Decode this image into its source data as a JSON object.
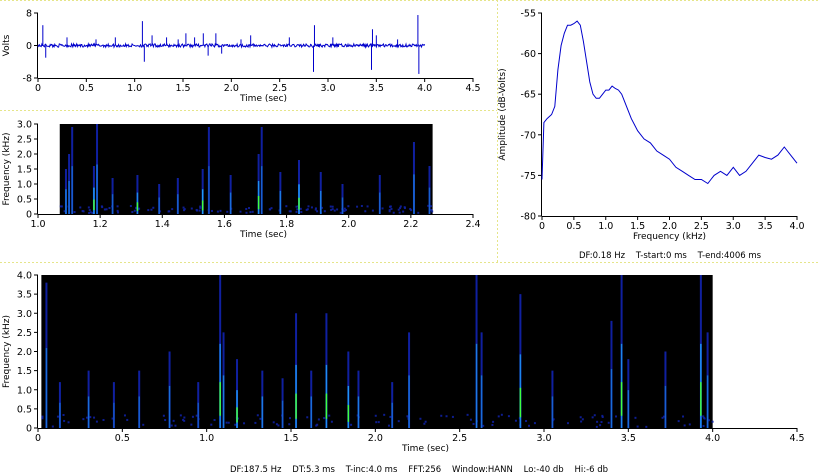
{
  "colors": {
    "background": "#ffffff",
    "panel_border": "#e5e58a",
    "trace": "#0000cc",
    "spectrogram_bg": "#000000",
    "spectrogram_low": "#1020a0",
    "spectrogram_mid": "#20a0ff",
    "spectrogram_high": "#40ff40"
  },
  "chart_data": [
    {
      "id": "waveform",
      "type": "line",
      "title": "",
      "xlabel": "Time (sec)",
      "ylabel": "Volts",
      "xlim": [
        0,
        4.5
      ],
      "ylim": [
        -8,
        8
      ],
      "xticks": [
        "0",
        "0.5",
        "1.0",
        "1.5",
        "2.0",
        "2.5",
        "3.0",
        "3.5",
        "4.0",
        "4.5"
      ],
      "yticks": [
        "8",
        "0",
        "-8"
      ],
      "x_end": 4.0,
      "baseline": 0,
      "noise_amplitude": 0.4,
      "spikes": [
        {
          "t": 0.05,
          "v": 5.0
        },
        {
          "t": 0.08,
          "v": -3.0
        },
        {
          "t": 0.3,
          "v": 2.0
        },
        {
          "t": 0.6,
          "v": 1.5
        },
        {
          "t": 0.8,
          "v": 2.0
        },
        {
          "t": 1.08,
          "v": 6.0
        },
        {
          "t": 1.1,
          "v": -4.0
        },
        {
          "t": 1.18,
          "v": 2.5
        },
        {
          "t": 1.33,
          "v": 2.0
        },
        {
          "t": 1.45,
          "v": 1.5
        },
        {
          "t": 1.53,
          "v": 3.0
        },
        {
          "t": 1.62,
          "v": 2.0
        },
        {
          "t": 1.71,
          "v": 3.0
        },
        {
          "t": 1.76,
          "v": -2.5
        },
        {
          "t": 1.84,
          "v": 3.0
        },
        {
          "t": 1.9,
          "v": -2.0
        },
        {
          "t": 2.1,
          "v": 1.5
        },
        {
          "t": 2.2,
          "v": 2.5
        },
        {
          "t": 2.6,
          "v": 2.0
        },
        {
          "t": 2.85,
          "v": -6.5
        },
        {
          "t": 2.86,
          "v": 5.0
        },
        {
          "t": 3.05,
          "v": 2.0
        },
        {
          "t": 3.45,
          "v": -6.0
        },
        {
          "t": 3.46,
          "v": 4.0
        },
        {
          "t": 3.5,
          "v": 2.5
        },
        {
          "t": 3.72,
          "v": 1.5
        },
        {
          "t": 3.93,
          "v": 7.5
        },
        {
          "t": 3.94,
          "v": -7.0
        }
      ]
    },
    {
      "id": "spectrogram_zoom",
      "type": "heatmap",
      "title": "",
      "xlabel": "Time (sec)",
      "ylabel": "Frequency (kHz)",
      "xlim": [
        1.0,
        2.4
      ],
      "ylim": [
        0,
        3.0
      ],
      "data_x_range": [
        1.07,
        2.27
      ],
      "xticks": [
        "1.0",
        "1.2",
        "1.4",
        "1.6",
        "1.8",
        "2.0",
        "2.2",
        "2.4"
      ],
      "yticks": [
        "0",
        "0.5",
        "1.0",
        "1.5",
        "2.0",
        "2.5",
        "3.0"
      ],
      "events": [
        {
          "t": 1.09,
          "fmax": 1.5,
          "intensity": 0.7
        },
        {
          "t": 1.1,
          "fmax": 2.0,
          "intensity": 0.6
        },
        {
          "t": 1.11,
          "fmax": 2.9,
          "intensity": 0.5
        },
        {
          "t": 1.18,
          "fmax": 1.6,
          "intensity": 0.95
        },
        {
          "t": 1.19,
          "fmax": 3.0,
          "intensity": 0.6
        },
        {
          "t": 1.24,
          "fmax": 1.2,
          "intensity": 0.5
        },
        {
          "t": 1.32,
          "fmax": 1.3,
          "intensity": 0.8
        },
        {
          "t": 1.39,
          "fmax": 1.0,
          "intensity": 0.5
        },
        {
          "t": 1.45,
          "fmax": 1.2,
          "intensity": 0.5
        },
        {
          "t": 1.53,
          "fmax": 1.5,
          "intensity": 0.95
        },
        {
          "t": 1.55,
          "fmax": 2.9,
          "intensity": 0.4
        },
        {
          "t": 1.62,
          "fmax": 1.3,
          "intensity": 0.6
        },
        {
          "t": 1.71,
          "fmax": 2.0,
          "intensity": 0.85
        },
        {
          "t": 1.72,
          "fmax": 2.9,
          "intensity": 0.5
        },
        {
          "t": 1.78,
          "fmax": 1.4,
          "intensity": 0.7
        },
        {
          "t": 1.84,
          "fmax": 1.8,
          "intensity": 0.95
        },
        {
          "t": 1.91,
          "fmax": 1.4,
          "intensity": 0.7
        },
        {
          "t": 1.98,
          "fmax": 1.0,
          "intensity": 0.5
        },
        {
          "t": 2.1,
          "fmax": 1.3,
          "intensity": 0.5
        },
        {
          "t": 2.21,
          "fmax": 2.4,
          "intensity": 0.6
        },
        {
          "t": 2.26,
          "fmax": 1.6,
          "intensity": 0.5
        }
      ]
    },
    {
      "id": "spectrum",
      "type": "line",
      "title": "",
      "xlabel": "Frequency (kHz)",
      "ylabel": "Amplitude (dB-Volts)",
      "xlim": [
        0,
        4.0
      ],
      "ylim": [
        -80,
        -55
      ],
      "xticks": [
        "0",
        "0.5",
        "1.0",
        "1.5",
        "2.0",
        "2.5",
        "3.0",
        "3.5",
        "4.0"
      ],
      "yticks": [
        "-55",
        "-60",
        "-65",
        "-70",
        "-75",
        "-80"
      ],
      "x": [
        0.0,
        0.03,
        0.08,
        0.15,
        0.2,
        0.25,
        0.3,
        0.35,
        0.4,
        0.45,
        0.5,
        0.55,
        0.6,
        0.65,
        0.7,
        0.75,
        0.8,
        0.85,
        0.9,
        0.95,
        1.0,
        1.05,
        1.1,
        1.15,
        1.2,
        1.25,
        1.3,
        1.35,
        1.4,
        1.5,
        1.6,
        1.7,
        1.8,
        1.9,
        2.0,
        2.1,
        2.2,
        2.3,
        2.4,
        2.5,
        2.6,
        2.65,
        2.7,
        2.8,
        2.9,
        3.0,
        3.1,
        3.2,
        3.3,
        3.4,
        3.5,
        3.6,
        3.7,
        3.8,
        3.85,
        3.9,
        4.0
      ],
      "y": [
        -75.5,
        -68.5,
        -68.0,
        -67.5,
        -66.5,
        -62.0,
        -59.0,
        -57.5,
        -56.5,
        -56.5,
        -56.3,
        -56.0,
        -56.5,
        -58.5,
        -61.0,
        -63.5,
        -65.0,
        -65.5,
        -65.5,
        -65.0,
        -64.5,
        -64.5,
        -64.0,
        -64.3,
        -64.5,
        -65.0,
        -66.0,
        -67.0,
        -68.0,
        -69.5,
        -70.5,
        -71.0,
        -72.0,
        -72.5,
        -73.0,
        -74.0,
        -74.5,
        -75.0,
        -75.5,
        -75.5,
        -76.0,
        -75.5,
        -75.0,
        -74.5,
        -75.0,
        -74.0,
        -75.0,
        -74.5,
        -73.5,
        -72.5,
        -72.8,
        -73.0,
        -72.5,
        -71.5,
        -72.0,
        -72.5,
        -73.5
      ]
    },
    {
      "id": "spectrogram_full",
      "type": "heatmap",
      "title": "",
      "xlabel": "Time (sec)",
      "ylabel": "Frequency (kHz)",
      "xlim": [
        0,
        4.5
      ],
      "ylim": [
        0,
        4.0
      ],
      "data_x_range": [
        0.02,
        4.0
      ],
      "xticks": [
        "0",
        "0.5",
        "1.0",
        "1.5",
        "2.0",
        "2.5",
        "3.0",
        "3.5",
        "4.0",
        "4.5"
      ],
      "yticks": [
        "0",
        "0.5",
        "1.0",
        "1.5",
        "2.0",
        "2.5",
        "3.0",
        "3.5",
        "4.0"
      ],
      "events": [
        {
          "t": 0.05,
          "fmax": 3.8,
          "intensity": 0.6
        },
        {
          "t": 0.13,
          "fmax": 1.2,
          "intensity": 0.5
        },
        {
          "t": 0.3,
          "fmax": 1.5,
          "intensity": 0.6
        },
        {
          "t": 0.45,
          "fmax": 1.2,
          "intensity": 0.4
        },
        {
          "t": 0.6,
          "fmax": 1.5,
          "intensity": 0.5
        },
        {
          "t": 0.78,
          "fmax": 2.0,
          "intensity": 0.6
        },
        {
          "t": 0.95,
          "fmax": 1.2,
          "intensity": 0.4
        },
        {
          "t": 1.08,
          "fmax": 4.0,
          "intensity": 0.8
        },
        {
          "t": 1.1,
          "fmax": 2.5,
          "intensity": 0.7
        },
        {
          "t": 1.18,
          "fmax": 1.8,
          "intensity": 0.9
        },
        {
          "t": 1.33,
          "fmax": 1.5,
          "intensity": 0.7
        },
        {
          "t": 1.45,
          "fmax": 1.3,
          "intensity": 0.5
        },
        {
          "t": 1.53,
          "fmax": 3.0,
          "intensity": 0.85
        },
        {
          "t": 1.62,
          "fmax": 1.5,
          "intensity": 0.6
        },
        {
          "t": 1.71,
          "fmax": 3.0,
          "intensity": 0.85
        },
        {
          "t": 1.84,
          "fmax": 2.0,
          "intensity": 0.9
        },
        {
          "t": 1.9,
          "fmax": 1.5,
          "intensity": 0.7
        },
        {
          "t": 2.1,
          "fmax": 1.2,
          "intensity": 0.5
        },
        {
          "t": 2.2,
          "fmax": 2.5,
          "intensity": 0.6
        },
        {
          "t": 2.6,
          "fmax": 4.0,
          "intensity": 0.7
        },
        {
          "t": 2.63,
          "fmax": 2.5,
          "intensity": 0.6
        },
        {
          "t": 2.86,
          "fmax": 3.5,
          "intensity": 0.8
        },
        {
          "t": 3.05,
          "fmax": 1.5,
          "intensity": 0.5
        },
        {
          "t": 3.4,
          "fmax": 2.8,
          "intensity": 0.6
        },
        {
          "t": 3.46,
          "fmax": 4.0,
          "intensity": 0.8
        },
        {
          "t": 3.5,
          "fmax": 1.8,
          "intensity": 0.6
        },
        {
          "t": 3.72,
          "fmax": 2.0,
          "intensity": 0.5
        },
        {
          "t": 3.93,
          "fmax": 4.0,
          "intensity": 0.9
        },
        {
          "t": 3.97,
          "fmax": 2.5,
          "intensity": 0.6
        }
      ]
    }
  ],
  "info": {
    "spectrum_line": "DF:0.18 Hz    T-start:0 ms    T-end:4006 ms",
    "full_line": "DF:187.5 Hz    DT:5.3 ms    T-inc:4.0 ms    FFT:256    Window:HANN    Lo:-40 db    Hi:-6 db"
  }
}
